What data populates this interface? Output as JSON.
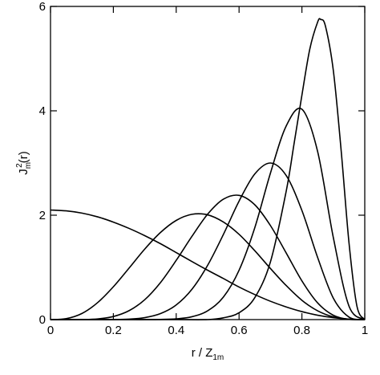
{
  "chart_data": {
    "type": "line",
    "xlabel": {
      "base": "r / Z",
      "sub": "1m"
    },
    "ylabel": {
      "base": "J",
      "sub": "m",
      "sup": "2",
      "rest": "(r)"
    },
    "xlim": [
      0,
      1
    ],
    "ylim": [
      0,
      6
    ],
    "xticks": [
      0,
      0.2,
      0.4,
      0.6,
      0.8,
      1
    ],
    "yticks": [
      0,
      2,
      4,
      6
    ],
    "grid": false,
    "color": "#000000",
    "series": [
      {
        "x": [
          0,
          0.05,
          0.1,
          0.15,
          0.2,
          0.25,
          0.3,
          0.35,
          0.4,
          0.45,
          0.5,
          0.55,
          0.6,
          0.65,
          0.7,
          0.75,
          0.8,
          0.85,
          0.9,
          0.95,
          1
        ],
        "values": [
          2.1,
          2.083,
          2.04,
          1.968,
          1.868,
          1.747,
          1.608,
          1.454,
          1.284,
          1.113,
          0.946,
          0.787,
          0.624,
          0.48,
          0.351,
          0.243,
          0.153,
          0.084,
          0.037,
          0.009,
          0
        ]
      },
      {
        "x": [
          0,
          0.05,
          0.1,
          0.15,
          0.2,
          0.25,
          0.3,
          0.35,
          0.4,
          0.45,
          0.5,
          0.55,
          0.6,
          0.65,
          0.7,
          0.75,
          0.8,
          0.85,
          0.9,
          0.95,
          1
        ],
        "values": [
          0,
          0.018,
          0.117,
          0.326,
          0.629,
          0.987,
          1.352,
          1.669,
          1.9,
          2.017,
          2.007,
          1.87,
          1.634,
          1.32,
          0.978,
          0.652,
          0.37,
          0.168,
          0.051,
          0.006,
          0
        ]
      },
      {
        "x": [
          0,
          0.05,
          0.1,
          0.15,
          0.2,
          0.25,
          0.3,
          0.35,
          0.4,
          0.45,
          0.5,
          0.55,
          0.6,
          0.65,
          0.7,
          0.75,
          0.8,
          0.85,
          0.9,
          0.95,
          1
        ],
        "values": [
          0,
          0,
          0.0015,
          0.013,
          0.059,
          0.171,
          0.382,
          0.71,
          1.135,
          1.595,
          2.02,
          2.306,
          2.38,
          2.2,
          1.8,
          1.276,
          0.741,
          0.32,
          0.083,
          0.006,
          0
        ]
      },
      {
        "x": [
          0,
          0.05,
          0.1,
          0.15,
          0.2,
          0.25,
          0.3,
          0.35,
          0.4,
          0.45,
          0.5,
          0.55,
          0.6,
          0.65,
          0.7,
          0.75,
          0.8,
          0.85,
          0.9,
          0.95,
          1
        ],
        "values": [
          0,
          0,
          0,
          0,
          0.0017,
          0.0096,
          0.038,
          0.115,
          0.28,
          0.58,
          1.04,
          1.63,
          2.27,
          2.79,
          3.0,
          2.76,
          2.09,
          1.19,
          0.41,
          0.047,
          0
        ]
      },
      {
        "x": [
          0,
          0.05,
          0.1,
          0.15,
          0.2,
          0.25,
          0.3,
          0.35,
          0.4,
          0.45,
          0.5,
          0.55,
          0.6,
          0.65,
          0.7,
          0.75,
          0.8,
          0.85,
          0.9,
          0.95,
          1
        ],
        "values": [
          0,
          0,
          0,
          0,
          0,
          0,
          0,
          0.003,
          0.0145,
          0.055,
          0.169,
          0.43,
          0.945,
          1.76,
          2.81,
          3.71,
          4.03,
          3.22,
          1.57,
          0.255,
          0
        ]
      },
      {
        "x": [
          0,
          0.1,
          0.2,
          0.3,
          0.4,
          0.5,
          0.55,
          0.6,
          0.65,
          0.7,
          0.75,
          0.775,
          0.8,
          0.825,
          0.85,
          0.86,
          0.875,
          0.9,
          0.925,
          0.95,
          0.975,
          1
        ],
        "values": [
          0,
          0,
          0,
          0,
          0,
          0,
          0.034,
          0.131,
          0.42,
          1.11,
          2.46,
          3.37,
          4.3,
          5.18,
          5.7,
          5.75,
          5.62,
          4.77,
          3.23,
          1.46,
          0.26,
          0
        ]
      }
    ]
  }
}
